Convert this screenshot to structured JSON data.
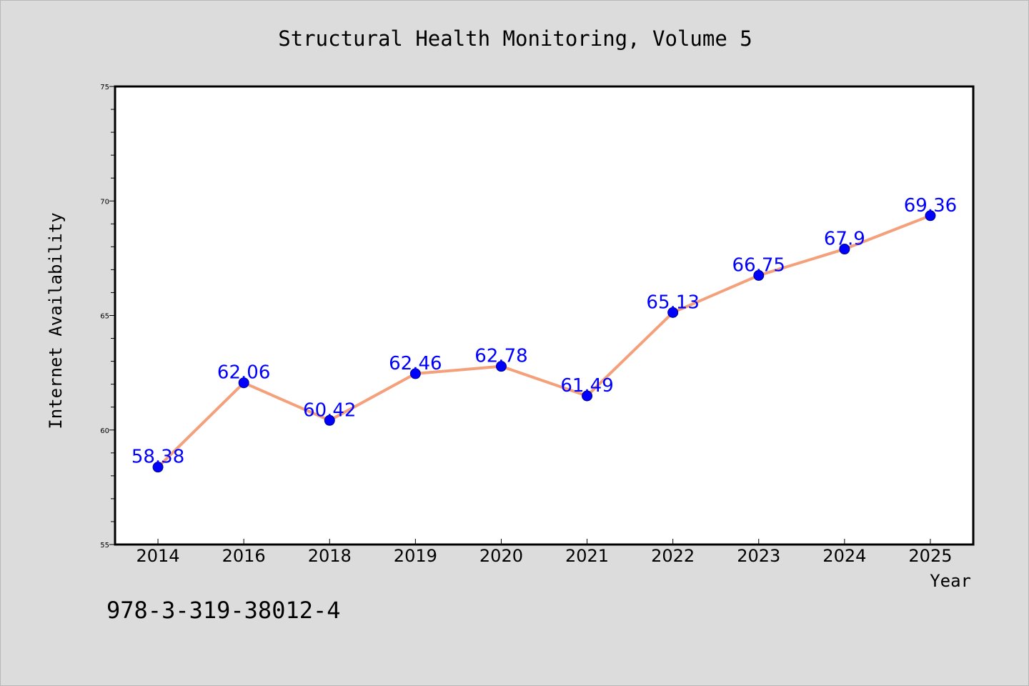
{
  "colors": {
    "background": "#dcdcdc",
    "plot_area": "#ffffff",
    "line": "#f4a07a",
    "marker": "#0000ff",
    "data_label": "#0000ff",
    "text": "#000000"
  },
  "footer": {
    "isbn": "978-3-319-38012-4"
  },
  "chart_data": {
    "type": "line",
    "title": "Structural Health Monitoring, Volume 5",
    "xlabel": "Year",
    "ylabel": "Internet Availability",
    "categories": [
      "2014",
      "2016",
      "2018",
      "2019",
      "2020",
      "2021",
      "2022",
      "2023",
      "2024",
      "2025"
    ],
    "series": [
      {
        "values": [
          58.38,
          62.06,
          60.42,
          62.46,
          62.78,
          61.49,
          65.13,
          66.75,
          67.9,
          69.36
        ]
      }
    ],
    "data_labels": [
      "58.38",
      "62.06",
      "60.42",
      "62.46",
      "62.78",
      "61.49",
      "65.13",
      "66.75",
      "67.9",
      "69.36"
    ],
    "ylim": [
      55,
      75
    ],
    "yticks": [
      "55",
      "60",
      "65",
      "70",
      "75"
    ],
    "ytick_values": [
      55,
      60,
      65,
      70,
      75
    ],
    "y_minor_step": 1,
    "grid": false,
    "legend": "none",
    "marker": "circle"
  }
}
